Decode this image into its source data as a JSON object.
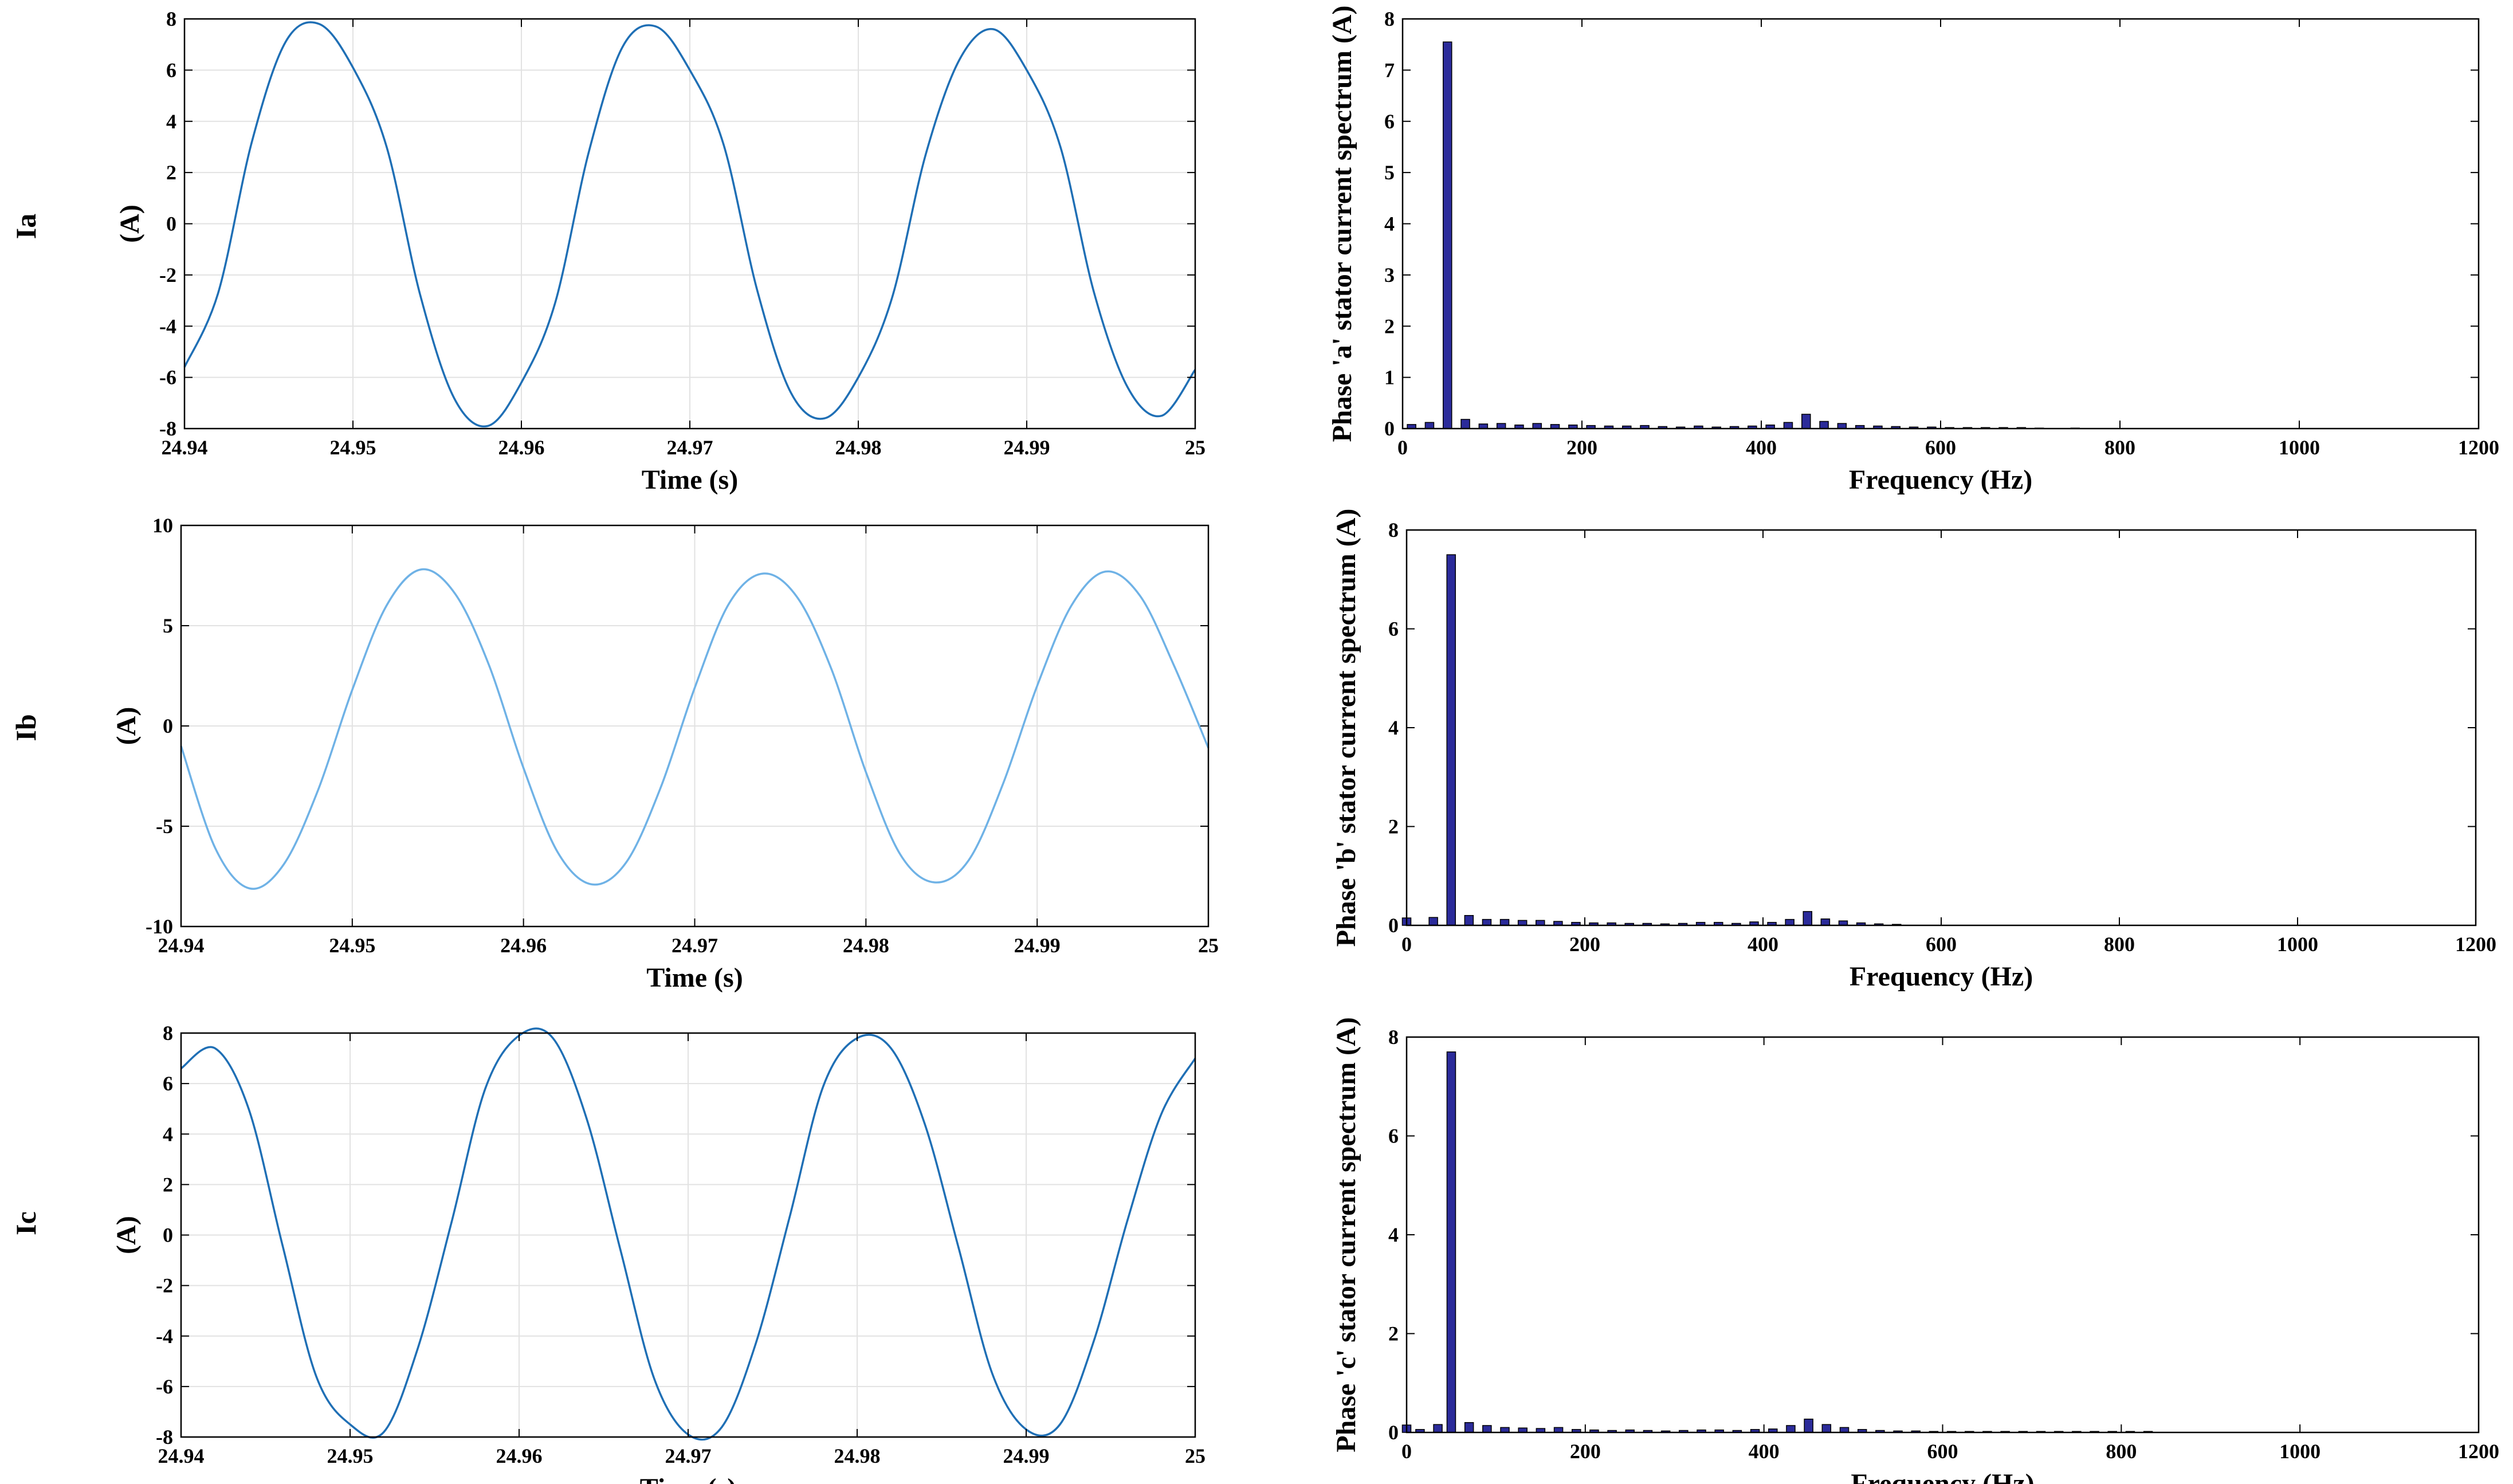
{
  "row_labels": [
    "Ia",
    "Ib",
    "Ic"
  ],
  "colors": {
    "wave_a": "#1f6fb5",
    "wave_b": "#6fb2e6",
    "wave_c": "#1f6fb5",
    "bar_fill": "#2b2b9a",
    "grid": "#e2e2e2",
    "axis": "#000000"
  },
  "chart_data": [
    {
      "type": "line",
      "row_label": "Ia",
      "ylabel": "(A)",
      "xlabel": "Time (s)",
      "xlim": [
        24.94,
        25.0
      ],
      "ylim": [
        -8,
        8
      ],
      "xticks": [
        "24.94",
        "24.95",
        "24.96",
        "24.97",
        "24.98",
        "24.99",
        "25"
      ],
      "yticks": [
        "8",
        "6",
        "4",
        "2",
        "0",
        "-2",
        "-4",
        "-6",
        "-8"
      ],
      "grid": true,
      "series": [
        {
          "x": [
            24.94,
            24.942,
            24.944,
            24.946,
            24.948,
            24.95,
            24.952,
            24.954,
            24.956,
            24.958,
            24.96,
            24.962,
            24.964,
            24.966,
            24.968,
            24.97,
            24.972,
            24.974,
            24.976,
            24.978,
            24.98,
            24.982,
            24.984,
            24.986,
            24.988,
            24.99,
            24.992,
            24.994,
            24.996,
            24.998,
            25.0
          ],
          "y": [
            -5.6,
            -2.7,
            3.2,
            7.1,
            7.8,
            6.1,
            3.0,
            -2.8,
            -6.8,
            -7.9,
            -6.2,
            -3.1,
            2.8,
            6.9,
            7.7,
            6.0,
            3.1,
            -2.6,
            -6.6,
            -7.6,
            -6.0,
            -2.9,
            2.7,
            6.4,
            7.6,
            6.0,
            3.0,
            -2.7,
            -6.4,
            -7.5,
            -5.7
          ]
        }
      ]
    },
    {
      "type": "line",
      "row_label": "Ib",
      "ylabel": "(A)",
      "xlabel": "Time (s)",
      "xlim": [
        24.94,
        25.0
      ],
      "ylim": [
        -10,
        10
      ],
      "xticks": [
        "24.94",
        "24.95",
        "24.96",
        "24.97",
        "24.98",
        "24.99",
        "25"
      ],
      "yticks": [
        "10",
        "5",
        "0",
        "-5",
        "-10"
      ],
      "grid": true,
      "series": [
        {
          "x": [
            24.94,
            24.942,
            24.944,
            24.946,
            24.948,
            24.95,
            24.952,
            24.954,
            24.956,
            24.958,
            24.96,
            24.962,
            24.964,
            24.966,
            24.968,
            24.97,
            24.972,
            24.974,
            24.976,
            24.978,
            24.98,
            24.982,
            24.984,
            24.986,
            24.988,
            24.99,
            24.992,
            24.994,
            24.996,
            24.998,
            25.0
          ],
          "y": [
            -1.0,
            -6.1,
            -8.1,
            -6.9,
            -3.2,
            1.8,
            6.0,
            7.8,
            6.6,
            3.0,
            -2.1,
            -6.3,
            -7.9,
            -6.8,
            -3.1,
            1.9,
            6.1,
            7.6,
            6.4,
            2.8,
            -2.3,
            -6.4,
            -7.8,
            -6.7,
            -2.9,
            2.0,
            6.0,
            7.7,
            6.5,
            3.0,
            -1.1
          ]
        }
      ]
    },
    {
      "type": "line",
      "row_label": "Ic",
      "ylabel": "(A)",
      "xlabel": "Time (s)",
      "xlim": [
        24.94,
        25.0
      ],
      "ylim": [
        -8,
        8
      ],
      "xticks": [
        "24.94",
        "24.95",
        "24.96",
        "24.97",
        "24.98",
        "24.99",
        "25"
      ],
      "yticks": [
        "8",
        "6",
        "4",
        "2",
        "0",
        "-2",
        "-4",
        "-6",
        "-8"
      ],
      "grid": true,
      "series": [
        {
          "x": [
            24.94,
            24.942,
            24.944,
            24.946,
            24.948,
            24.95,
            24.952,
            24.954,
            24.956,
            24.958,
            24.96,
            24.962,
            24.964,
            24.966,
            24.968,
            24.97,
            24.972,
            24.974,
            24.976,
            24.978,
            24.98,
            24.982,
            24.984,
            24.986,
            24.988,
            24.99,
            24.992,
            24.994,
            24.996,
            24.998,
            25.0
          ],
          "y": [
            6.6,
            7.4,
            5.0,
            -0.4,
            -5.6,
            -7.5,
            -7.8,
            -4.5,
            0.5,
            5.8,
            7.9,
            7.8,
            4.6,
            -0.6,
            -5.7,
            -7.9,
            -7.6,
            -4.3,
            0.7,
            5.9,
            7.8,
            7.4,
            4.4,
            -0.5,
            -5.5,
            -7.7,
            -7.5,
            -4.2,
            0.6,
            4.8,
            7.0
          ]
        }
      ]
    },
    {
      "type": "bar",
      "ylabel": "Phase 'a' stator current spectrum (A)",
      "xlabel": "Frequency (Hz)",
      "xlim": [
        0,
        1200
      ],
      "ylim": [
        0,
        8
      ],
      "xticks": [
        "0",
        "200",
        "400",
        "600",
        "800",
        "1000",
        "1200"
      ],
      "yticks": [
        "8",
        "7",
        "6",
        "5",
        "4",
        "3",
        "2",
        "1",
        "0"
      ],
      "grid": false,
      "x": [
        10,
        30,
        50,
        70,
        90,
        110,
        130,
        150,
        170,
        190,
        210,
        230,
        250,
        270,
        290,
        310,
        330,
        350,
        370,
        390,
        410,
        430,
        450,
        470,
        490,
        510,
        530,
        550,
        570,
        590,
        610,
        630,
        650,
        670,
        690,
        710,
        750
      ],
      "values": [
        0.08,
        0.12,
        7.55,
        0.18,
        0.09,
        0.1,
        0.07,
        0.1,
        0.08,
        0.07,
        0.06,
        0.05,
        0.05,
        0.06,
        0.04,
        0.03,
        0.05,
        0.03,
        0.04,
        0.05,
        0.07,
        0.12,
        0.28,
        0.14,
        0.1,
        0.06,
        0.05,
        0.04,
        0.03,
        0.03,
        0.02,
        0.02,
        0.02,
        0.02,
        0.02,
        0.01,
        0.01
      ]
    },
    {
      "type": "bar",
      "ylabel": "Phase 'b' stator current spectrum (A)",
      "xlabel": "Frequency (Hz)",
      "xlim": [
        0,
        1200
      ],
      "ylim": [
        0,
        8
      ],
      "xticks": [
        "0",
        "200",
        "400",
        "600",
        "800",
        "1000",
        "1200"
      ],
      "yticks": [
        "8",
        "6",
        "4",
        "2",
        "0"
      ],
      "grid": false,
      "x": [
        0,
        30,
        50,
        70,
        90,
        110,
        130,
        150,
        170,
        190,
        210,
        230,
        250,
        270,
        290,
        310,
        330,
        350,
        370,
        390,
        410,
        430,
        450,
        470,
        490,
        510,
        530,
        550
      ],
      "values": [
        0.15,
        0.16,
        7.5,
        0.2,
        0.12,
        0.12,
        0.1,
        0.1,
        0.08,
        0.06,
        0.05,
        0.05,
        0.04,
        0.04,
        0.03,
        0.04,
        0.06,
        0.06,
        0.04,
        0.07,
        0.06,
        0.12,
        0.28,
        0.13,
        0.09,
        0.05,
        0.03,
        0.02
      ]
    },
    {
      "type": "bar",
      "ylabel": "Phase 'c' stator current spectrum (A)",
      "xlabel": "Frequency (Hz)",
      "xlim": [
        0,
        1200
      ],
      "ylim": [
        0,
        8
      ],
      "xticks": [
        "0",
        "200",
        "400",
        "600",
        "800",
        "1000",
        "1200"
      ],
      "yticks": [
        "8",
        "6",
        "4",
        "2",
        "0"
      ],
      "grid": false,
      "x": [
        0,
        15,
        35,
        50,
        70,
        90,
        110,
        130,
        150,
        170,
        190,
        210,
        230,
        250,
        270,
        290,
        310,
        330,
        350,
        370,
        390,
        410,
        430,
        450,
        470,
        490,
        510,
        530,
        550,
        570,
        590,
        610,
        630,
        650,
        670,
        690,
        710,
        730,
        750,
        770,
        790,
        810,
        830
      ],
      "values": [
        0.15,
        0.06,
        0.16,
        7.7,
        0.2,
        0.14,
        0.1,
        0.09,
        0.08,
        0.1,
        0.06,
        0.05,
        0.04,
        0.05,
        0.04,
        0.03,
        0.04,
        0.05,
        0.05,
        0.04,
        0.06,
        0.07,
        0.14,
        0.27,
        0.16,
        0.1,
        0.06,
        0.04,
        0.03,
        0.03,
        0.02,
        0.02,
        0.02,
        0.02,
        0.02,
        0.02,
        0.02,
        0.02,
        0.02,
        0.02,
        0.02,
        0.02,
        0.02
      ]
    }
  ]
}
